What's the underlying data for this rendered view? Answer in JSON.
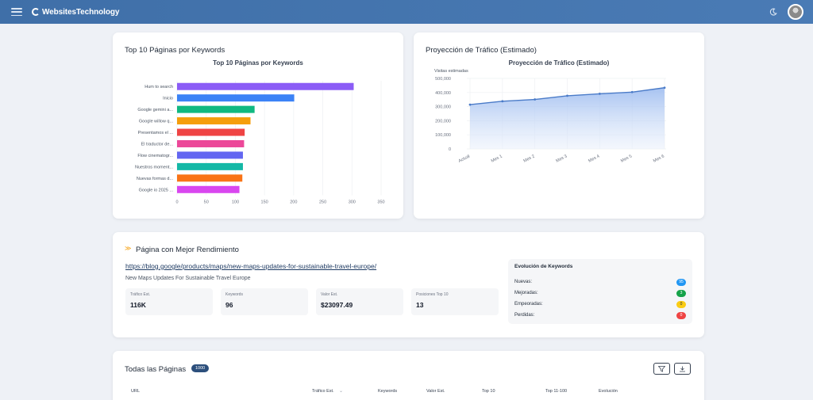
{
  "header": {
    "brand": "WebsitesTechnology"
  },
  "keywords_card": {
    "title": "Top 10 Páginas por Keywords"
  },
  "traffic_card": {
    "title": "Proyección de Tráfico (Estimado)"
  },
  "chart_data": [
    {
      "type": "bar",
      "orientation": "horizontal",
      "title": "Top 10 Páginas por Keywords",
      "categories": [
        "Hum to search",
        "Inicio",
        "Google gemini a...",
        "Google willow q...",
        "Presentamos el ...",
        "El traductor de...",
        "Flow cinematogr...",
        "Nuestros moment...",
        "Nuevas formas d...",
        "Google io 2025 ..."
      ],
      "values": [
        303,
        201,
        133,
        126,
        116,
        115,
        113,
        113,
        112,
        107
      ],
      "colors": [
        "#8b5cf6",
        "#3b82f6",
        "#10b981",
        "#f59e0b",
        "#ef4444",
        "#ec4899",
        "#6366f1",
        "#14b8a6",
        "#f97316",
        "#d946ef"
      ],
      "xlim": [
        0,
        350
      ],
      "xticks": [
        "0",
        "50",
        "100",
        "150",
        "200",
        "250",
        "300",
        "350"
      ],
      "grid": true,
      "legend": "none"
    },
    {
      "type": "area",
      "title": "Proyección de Tráfico (Estimado)",
      "ylabel": "Visitas estimadas",
      "categories": [
        "Actual",
        "Mes 1",
        "Mes 2",
        "Mes 3",
        "Mes 4",
        "Mes 5",
        "Mes 6"
      ],
      "values": [
        314000,
        338000,
        351000,
        377000,
        391000,
        403000,
        434000
      ],
      "ylim": [
        0,
        500000
      ],
      "yticks": [
        "0",
        "100,000",
        "200,000",
        "300,000",
        "400,000",
        "500,000"
      ],
      "color": "#4a7bc8",
      "grid": true,
      "legend": "none"
    }
  ],
  "best_page": {
    "title": "Página con Mejor Rendimiento",
    "url": "https://blog.google/products/maps/new-maps-updates-for-sustainable-travel-europe/",
    "name": "New Maps Updates For Sustainable Travel Europe",
    "stats": [
      {
        "label": "Tráfico Est.",
        "value": "116K"
      },
      {
        "label": "Keywords",
        "value": "96"
      },
      {
        "label": "Valor Est.",
        "value": "$23097.49"
      },
      {
        "label": "Posiciones Top 10",
        "value": "13"
      }
    ],
    "evolution": {
      "title": "Evolución de Keywords",
      "rows": [
        {
          "label": "Nuevas:",
          "value": "95",
          "color": "#2196f3"
        },
        {
          "label": "Mejoradas:",
          "value": "3",
          "color": "#16a34a"
        },
        {
          "label": "Empeoradas:",
          "value": "0",
          "color": "#facc15"
        },
        {
          "label": "Perdidas:",
          "value": "0",
          "color": "#ef4444"
        }
      ]
    }
  },
  "all_pages": {
    "title": "Todas las Páginas",
    "count": "1000",
    "filter_icon": "filter-icon",
    "download_icon": "download-icon",
    "columns": [
      "URL",
      "Tráfico Est.",
      "Keywords",
      "Valor Est.",
      "Top 10",
      "Top 11-100",
      "Evolución"
    ]
  }
}
